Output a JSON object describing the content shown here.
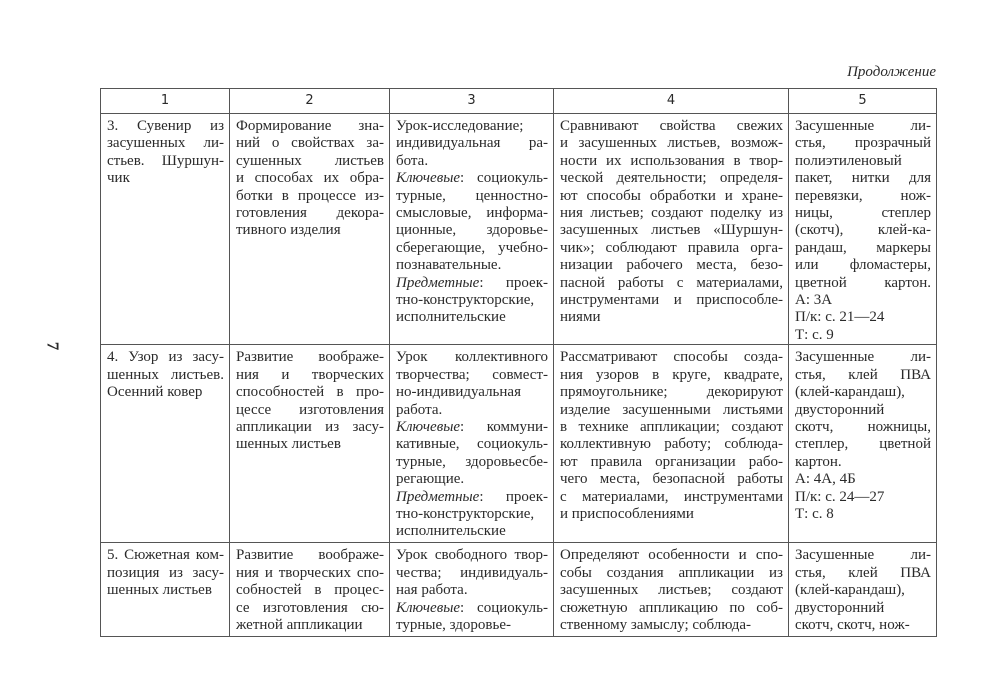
{
  "continuation_label": "Продолжение",
  "page_number": "7",
  "headers": [
    "1",
    "2",
    "3",
    "4",
    "5"
  ],
  "rows": [
    [
      [
        "3. Сувенир из",
        "засушенных ли-",
        "стьев. Шуршун-",
        "чик"
      ],
      [
        "Формирование зна-",
        "ний о свойствах за-",
        "сушенных листьев",
        "и способах их обра-",
        "ботки в процессе из-",
        "готовления декора-",
        "тивного изделия"
      ],
      [
        "Урок-исследование;",
        "индивидуальная ра-",
        "бота.",
        {
          "italic": "Ключевые",
          "rest": ": социокуль-"
        },
        "турные, ценностно-",
        "смысловые, информа-",
        "ционные, здоровье-",
        "сберегающие, учебно-",
        "познавательные.",
        {
          "italic": "Предметные",
          "rest": ": проек-"
        },
        "тно-конструкторские,",
        "исполнительские"
      ],
      [
        "Сравнивают свойства свежих",
        "и засушенных листьев, возмож-",
        "ности их использования в твор-",
        "ческой деятельности; определя-",
        "ют способы обработки и хране-",
        "ния листьев; создают поделку из",
        "засушенных листьев «Шуршун-",
        "чик»; соблюдают правила орга-",
        "низации рабочего места, безо-",
        "пасной работы с материалами,",
        "инструментами и приспособле-",
        "ниями"
      ],
      [
        "Засушенные ли-",
        "стья, прозрачный",
        "полиэтиленовый",
        "пакет, нитки для",
        "перевязки, нож-",
        "ницы, степлер",
        "(скотч), клей-ка-",
        "рандаш, маркеры",
        "или фломастеры,",
        "цветной картон.",
        "А: 3А",
        "П/к: с. 21—24",
        "Т: с. 9"
      ]
    ],
    [
      [
        "4. Узор из засу-",
        "шенных листьев.",
        "Осенний ковер"
      ],
      [
        "Развитие воображе-",
        "ния и творческих",
        "способностей в про-",
        "цессе изготовления",
        "аппликации из засу-",
        "шенных листьев"
      ],
      [
        "Урок коллективного",
        "творчества; совмест-",
        "но-индивидуальная",
        "работа.",
        {
          "italic": "Ключевые",
          "rest": ": коммуни-"
        },
        "кативные, социокуль-",
        "турные, здоровьесбе-",
        "регающие.",
        {
          "italic": "Предметные",
          "rest": ": проек-"
        },
        "тно-конструкторские,",
        "исполнительские"
      ],
      [
        "Рассматривают способы созда-",
        "ния узоров в круге, квадрате,",
        "прямоугольнике; декорируют",
        "изделие засушенными листьями",
        "в технике аппликации; создают",
        "коллективную работу; соблюда-",
        "ют правила организации рабо-",
        "чего места, безопасной работы",
        "с материалами, инструментами",
        "и приспособлениями"
      ],
      [
        "Засушенные ли-",
        "стья, клей ПВА",
        "(клей-карандаш),",
        "двусторонний",
        "скотч, ножницы,",
        "степлер, цветной",
        "картон.",
        "А: 4А, 4Б",
        "П/к: с. 24—27",
        "Т: с. 8"
      ]
    ],
    [
      [
        "5. Сюжетная ком-",
        "позиция из засу-",
        "шенных листьев"
      ],
      [
        "Развитие воображе-",
        "ния и творческих спо-",
        "собностей в процес-",
        "се изготовления сю-",
        "жетной аппликации"
      ],
      [
        "Урок свободного твор-",
        "чества; индивидуаль-",
        "ная работа.",
        {
          "italic": "Ключевые",
          "rest": ": социокуль-"
        },
        "турные, здоровье-"
      ],
      [
        "Определяют особенности и спо-",
        "собы создания аппликации из",
        "засушенных листьев; создают",
        "сюжетную аппликацию по соб-",
        "ственному замыслу; соблюда-"
      ],
      [
        "Засушенные ли-",
        "стья, клей ПВА",
        "(клей-карандаш),",
        "двусторонний",
        "скотч, скотч, нож-"
      ]
    ]
  ]
}
